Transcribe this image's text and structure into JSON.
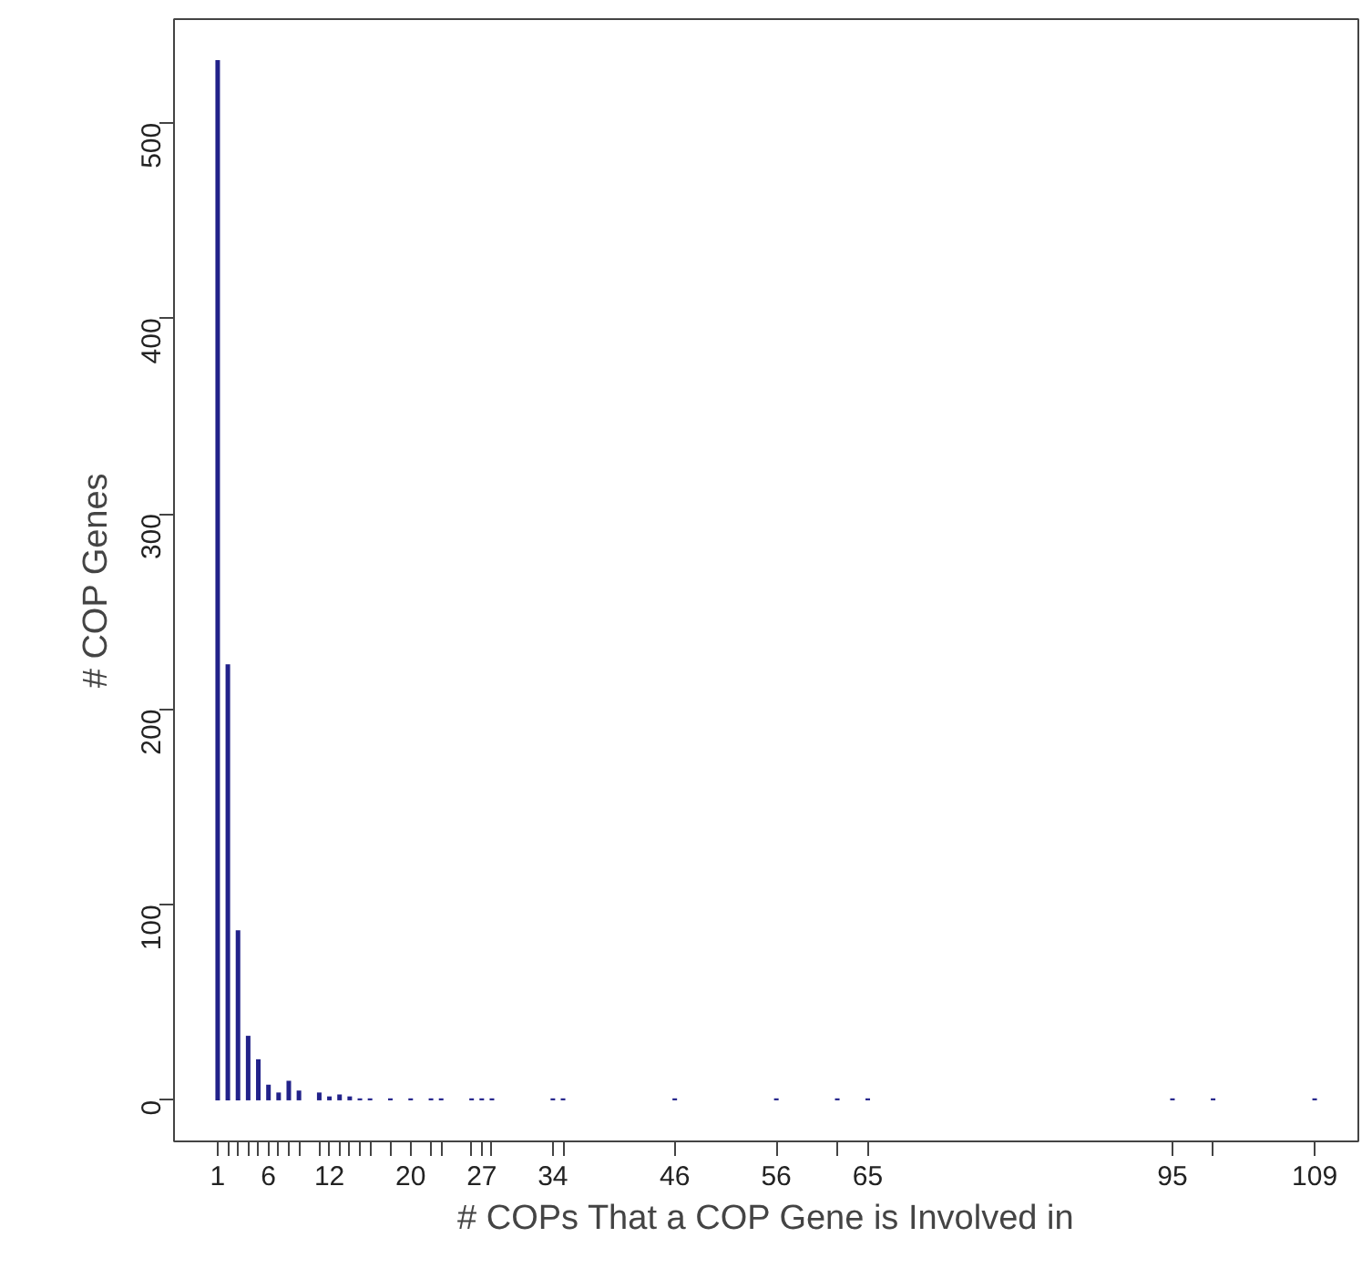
{
  "chart_data": {
    "type": "bar",
    "xlabel": "# COPs That a COP Gene is Involved in",
    "ylabel": "# COP Genes",
    "color": "#22228a",
    "x": [
      1,
      2,
      3,
      4,
      5,
      6,
      7,
      8,
      9,
      11,
      12,
      13,
      14,
      15,
      16,
      18,
      20,
      22,
      23,
      26,
      27,
      28,
      34,
      35,
      46,
      56,
      62,
      65,
      95,
      99,
      109
    ],
    "values": [
      532,
      223,
      87,
      33,
      21,
      8,
      4,
      10,
      5,
      4,
      2,
      3,
      2,
      1,
      1,
      1,
      1,
      1,
      1,
      1,
      1,
      1,
      1,
      1,
      1,
      1,
      1,
      1,
      1,
      1,
      1
    ],
    "xlim": [
      -3.3,
      113.3
    ],
    "ylim": [
      -21,
      553
    ],
    "yticks": [
      0,
      100,
      200,
      300,
      400,
      500
    ],
    "xticks": [
      1,
      {
        "value": 2,
        "label": null
      },
      {
        "value": 3,
        "label": null
      },
      {
        "value": 4,
        "label": null
      },
      {
        "value": 5,
        "label": null
      },
      6,
      {
        "value": 7,
        "label": null
      },
      {
        "value": 8,
        "label": null
      },
      {
        "value": 9,
        "label": null
      },
      {
        "value": 11,
        "label": null
      },
      12,
      {
        "value": 13,
        "label": null
      },
      {
        "value": 14,
        "label": null
      },
      {
        "value": 15,
        "label": null
      },
      {
        "value": 16,
        "label": null
      },
      {
        "value": 18,
        "label": null
      },
      20,
      {
        "value": 22,
        "label": null
      },
      {
        "value": 23,
        "label": null
      },
      {
        "value": 26,
        "label": null
      },
      27,
      {
        "value": 28,
        "label": null
      },
      34,
      {
        "value": 35,
        "label": null
      },
      46,
      56,
      {
        "value": 62,
        "label": null
      },
      65,
      95,
      {
        "value": 99,
        "label": null
      },
      109
    ],
    "grid": false
  }
}
